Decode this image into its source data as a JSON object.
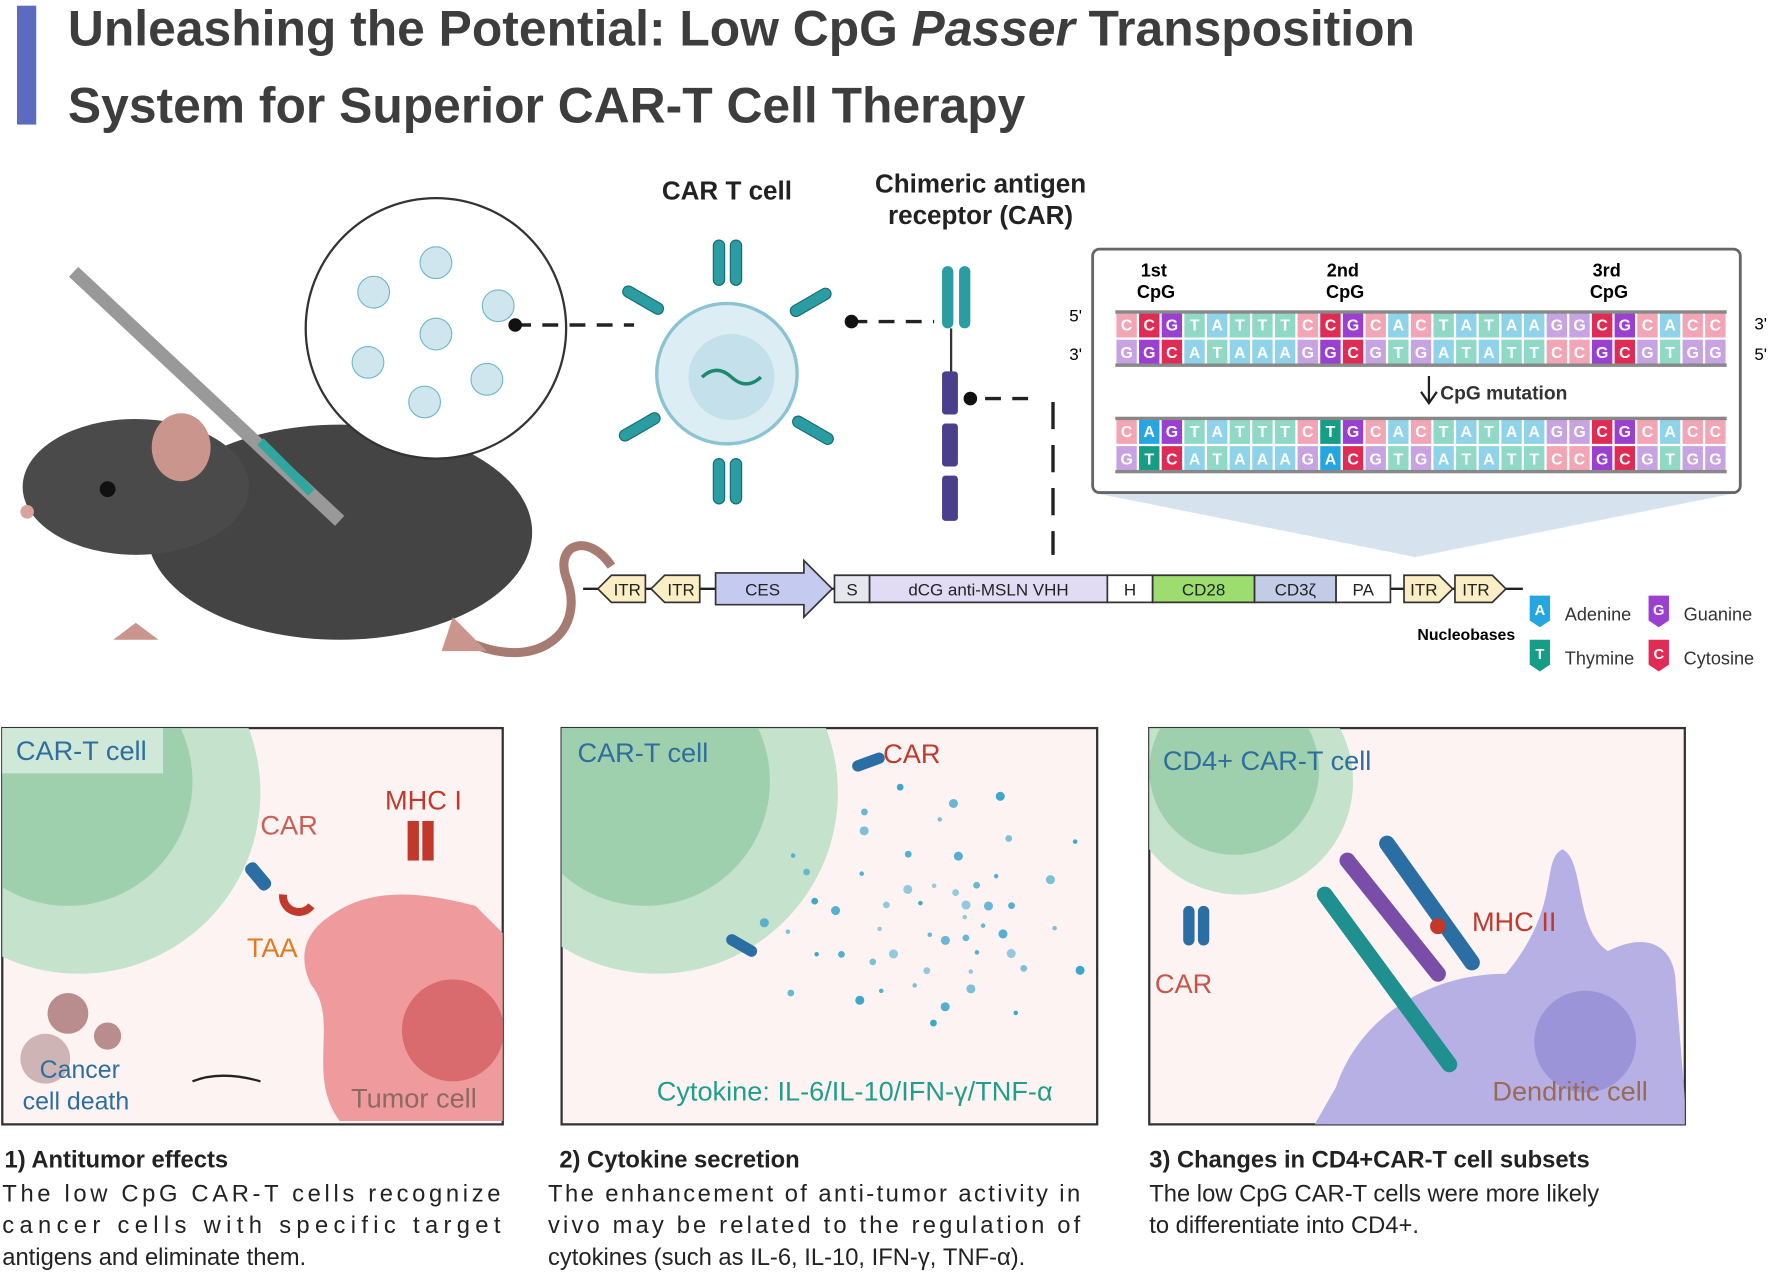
{
  "header": {
    "title_start": "Unleashing the Potential: Low CpG",
    "title_italic": "Passer",
    "title_end": "Transposition",
    "title_line2": "System for Superior CAR-T Cell Therapy"
  },
  "overview": {
    "car_t_cell": "CAR T cell",
    "car_label": [
      "Chimeric antigen",
      "receptor (CAR)"
    ]
  },
  "dna": {
    "cpg_labels": [
      [
        "1st",
        "CpG"
      ],
      [
        "2nd",
        "CpG"
      ],
      [
        "3rd",
        "CpG"
      ]
    ],
    "strand_ends": {
      "left_top": "5'",
      "left_bottom": "3'",
      "right_top": "3'",
      "right_bottom": "5'"
    },
    "original": {
      "top": [
        "C",
        "C",
        "G",
        "T",
        "A",
        "T",
        "T",
        "T",
        "C",
        "C",
        "G",
        "C",
        "A",
        "C",
        "T",
        "A",
        "T",
        "A",
        "A",
        "G",
        "G",
        "C",
        "G",
        "C",
        "A",
        "C",
        "C"
      ],
      "bottom": [
        "G",
        "G",
        "C",
        "A",
        "T",
        "A",
        "A",
        "A",
        "G",
        "G",
        "C",
        "G",
        "T",
        "G",
        "A",
        "T",
        "A",
        "T",
        "T",
        "C",
        "C",
        "G",
        "C",
        "G",
        "T",
        "G",
        "G"
      ]
    },
    "mutation_label": "CpG mutation",
    "mutated": {
      "top": [
        "C",
        "A",
        "G",
        "T",
        "A",
        "T",
        "T",
        "T",
        "C",
        "T",
        "G",
        "C",
        "A",
        "C",
        "T",
        "A",
        "T",
        "A",
        "A",
        "G",
        "G",
        "C",
        "G",
        "C",
        "A",
        "C",
        "C"
      ],
      "bottom": [
        "G",
        "T",
        "C",
        "A",
        "T",
        "A",
        "A",
        "A",
        "G",
        "A",
        "C",
        "G",
        "T",
        "G",
        "A",
        "T",
        "A",
        "T",
        "T",
        "C",
        "C",
        "G",
        "C",
        "G",
        "T",
        "G",
        "G"
      ]
    }
  },
  "construct": [
    "ITR",
    "ITR",
    "CES",
    "S",
    "dCG anti-MSLN VHH",
    "H",
    "CD28",
    "CD3ζ",
    "PA",
    "ITR",
    "ITR"
  ],
  "legend": {
    "title": "Nucleobases",
    "items": [
      {
        "letter": "A",
        "name": "Adenine"
      },
      {
        "letter": "G",
        "name": "Guanine"
      },
      {
        "letter": "T",
        "name": "Thymine"
      },
      {
        "letter": "C",
        "name": "Cytosine"
      }
    ]
  },
  "panels": [
    {
      "cell": "CAR-T cell",
      "car": "CAR",
      "mhc": "MHC I",
      "taa": "TAA",
      "death": [
        "Cancer",
        "cell death"
      ],
      "tumor": "Tumor cell",
      "caption": "1) Antitumor effects",
      "body": [
        "The low CpG CAR-T cells recognize",
        "cancer cells with specific target",
        "antigens and eliminate them."
      ]
    },
    {
      "cell": "CAR-T cell",
      "car": "CAR",
      "cytokine": "Cytokine: IL-6/IL-10/IFN-γ/TNF-α",
      "caption": "2) Cytokine secretion",
      "body": [
        "The enhancement of anti-tumor activity in",
        "vivo may be related to the regulation of",
        "cytokines (such as IL-6, IL-10, IFN-γ, TNF-α)."
      ]
    },
    {
      "cell": "CD4+ CAR-T cell",
      "car": "CAR",
      "mhc": "MHC II",
      "dc": "Dendritic cell",
      "caption": "3) Changes in CD4+CAR-T cell subsets",
      "body": [
        "The low CpG CAR-T cells were more likely",
        "to differentiate into CD4+."
      ]
    }
  ]
}
